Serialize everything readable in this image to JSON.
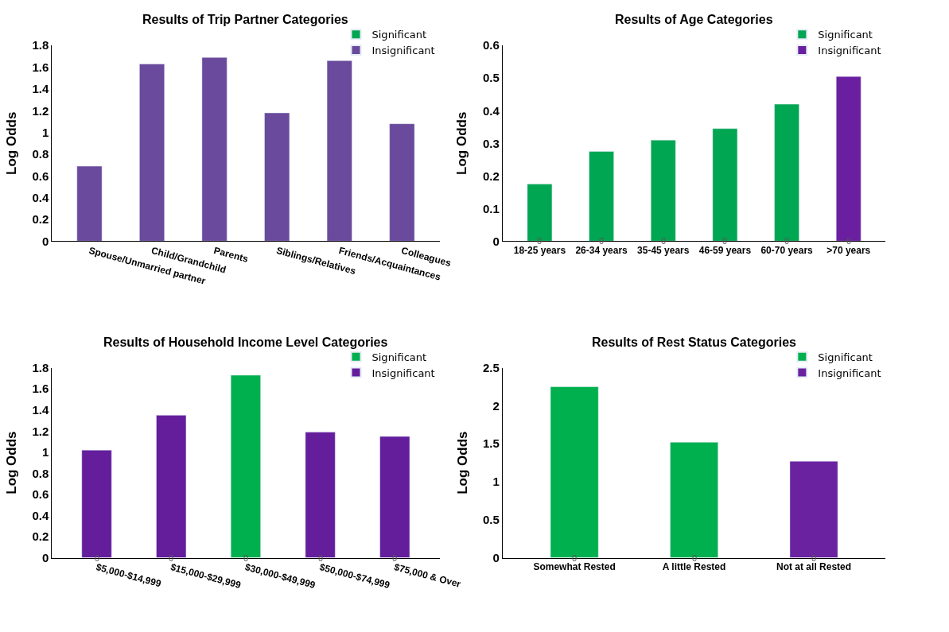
{
  "chart_data": [
    {
      "type": "bar",
      "title": "Results of Trip Partner Categories",
      "ylabel": "Log Odds",
      "categories": [
        "Spouse/Unmarried partner",
        "Child/Grandchild",
        "Parents",
        "Siblings/Relatives",
        "Friends/Acquaintances",
        "Colleagues"
      ],
      "series": [
        {
          "name": "Significant",
          "color": "#00a651",
          "values": [
            null,
            null,
            null,
            null,
            null,
            null
          ]
        },
        {
          "name": "Insignificant",
          "color": "#6a4a9c",
          "values": [
            0.69,
            1.63,
            1.69,
            1.18,
            1.66,
            1.08
          ]
        }
      ],
      "ylim": [
        0,
        1.8
      ],
      "yticks": [
        0,
        0.2,
        0.4,
        0.6,
        0.8,
        1,
        1.2,
        1.4,
        1.6,
        1.8
      ],
      "grid": false,
      "legend": "top right"
    },
    {
      "type": "bar",
      "title": "Results of Age Categories",
      "ylabel": "Log Odds",
      "categories": [
        "18-25 years",
        "26-34 years",
        "35-45 years",
        "46-59 years",
        "60-70 years",
        ">70 years"
      ],
      "series": [
        {
          "name": "Significant",
          "color": "#00a651",
          "values": [
            0.175,
            0.275,
            0.31,
            0.345,
            0.42,
            null
          ]
        },
        {
          "name": "Insignificant",
          "color": "#6a1fa0",
          "values": [
            null,
            null,
            null,
            null,
            null,
            0.505
          ]
        }
      ],
      "ylim": [
        0,
        0.6
      ],
      "yticks": [
        0,
        0.1,
        0.2,
        0.3,
        0.4,
        0.5,
        0.6
      ],
      "grid": false,
      "legend": "top right",
      "annotations": [
        {
          "text": "0",
          "x": "18-25 years",
          "y": 0
        },
        {
          "text": "0",
          "x": "26-34 years",
          "y": 0
        },
        {
          "text": "0",
          "x": "35-45 years",
          "y": 0
        },
        {
          "text": "0",
          "x": "46-59 years",
          "y": 0
        },
        {
          "text": "0",
          "x": "60-70 years",
          "y": 0
        },
        {
          "text": "0",
          "x": ">70 years",
          "y": 0
        }
      ]
    },
    {
      "type": "bar",
      "title": "Results of Household Income Level Categories",
      "ylabel": "Log Odds",
      "categories": [
        "$5,000-$14,999",
        "$15,000-$29,999",
        "$30,000-$49,999",
        "$50,000-$74,999",
        "$75,000 & Over"
      ],
      "series": [
        {
          "name": "Significant",
          "color": "#00b04f",
          "values": [
            null,
            null,
            1.73,
            null,
            null
          ]
        },
        {
          "name": "Insignificant",
          "color": "#641e9c",
          "values": [
            1.02,
            1.35,
            null,
            1.19,
            1.15
          ]
        }
      ],
      "ylim": [
        0,
        1.8
      ],
      "yticks": [
        0,
        0.2,
        0.4,
        0.6,
        0.8,
        1,
        1.2,
        1.4,
        1.6,
        1.8
      ],
      "grid": false,
      "legend": "top right",
      "annotations": [
        {
          "text": "0",
          "x": "$5,000-$14,999",
          "y": 0
        },
        {
          "text": "0",
          "x": "$15,000-$29,999",
          "y": 0
        },
        {
          "text": "0",
          "x": "$30,000-$49,999",
          "y": 0
        },
        {
          "text": "0",
          "x": "$50,000-$74,999",
          "y": 0
        },
        {
          "text": "0",
          "x": "$75,000 & Over",
          "y": 0
        }
      ]
    },
    {
      "type": "bar",
      "title": "Results of Rest Status Categories",
      "ylabel": "Log Odds",
      "categories": [
        "Somewhat Rested",
        "A little Rested",
        "Not at all Rested"
      ],
      "series": [
        {
          "name": "Significant",
          "color": "#00b04f",
          "values": [
            2.25,
            1.52,
            null
          ]
        },
        {
          "name": "Insignificant",
          "color": "#6a22a0",
          "values": [
            null,
            null,
            1.27
          ]
        }
      ],
      "ylim": [
        0,
        2.5
      ],
      "yticks": [
        0,
        0.5,
        1,
        1.5,
        2,
        2.5
      ],
      "grid": false,
      "legend": "top right",
      "annotations": [
        {
          "text": "0",
          "x": "Somewhat Rested",
          "y": 0
        },
        {
          "text": "0",
          "x": "A little Rested",
          "y": 0
        },
        {
          "text": "0",
          "x": "Not at all Rested",
          "y": 0
        }
      ]
    }
  ]
}
